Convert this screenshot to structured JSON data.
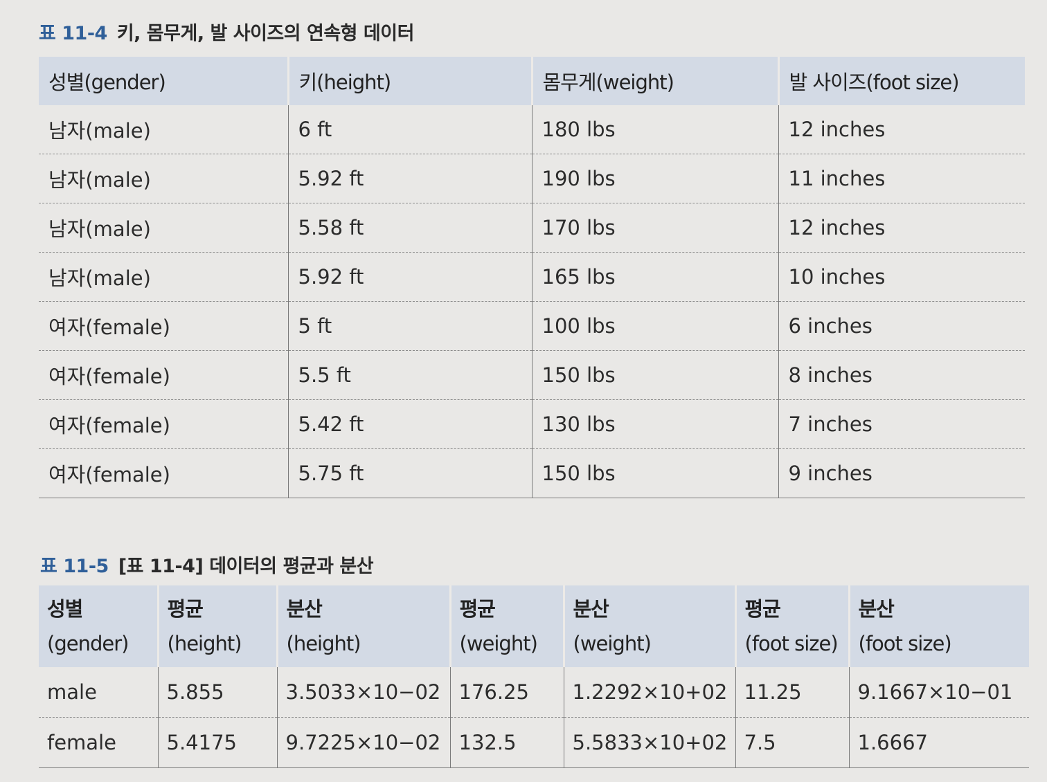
{
  "table1": {
    "caption_tag": "표 11-4",
    "caption_text": "키, 몸무게, 발 사이즈의 연속형 데이터",
    "headers": [
      "성별(gender)",
      "키(height)",
      "몸무게(weight)",
      "발 사이즈(foot size)"
    ],
    "rows": [
      [
        "남자(male)",
        "6 ft",
        "180 lbs",
        "12 inches"
      ],
      [
        "남자(male)",
        "5.92 ft",
        "190 lbs",
        "11 inches"
      ],
      [
        "남자(male)",
        "5.58 ft",
        "170 lbs",
        "12 inches"
      ],
      [
        "남자(male)",
        "5.92 ft",
        "165 lbs",
        "10 inches"
      ],
      [
        "여자(female)",
        "5 ft",
        "100 lbs",
        "6 inches"
      ],
      [
        "여자(female)",
        "5.5 ft",
        "150 lbs",
        "8 inches"
      ],
      [
        "여자(female)",
        "5.42 ft",
        "130 lbs",
        "7 inches"
      ],
      [
        "여자(female)",
        "5.75 ft",
        "150 lbs",
        "9 inches"
      ]
    ]
  },
  "table2": {
    "caption_tag": "표 11-5",
    "caption_text": "[표 11-4] 데이터의 평균과 분산",
    "headers": [
      [
        "성별",
        "(gender)"
      ],
      [
        "평균",
        "(height)"
      ],
      [
        "분산",
        "(height)"
      ],
      [
        "평균",
        "(weight)"
      ],
      [
        "분산",
        "(weight)"
      ],
      [
        "평균",
        "(foot size)"
      ],
      [
        "분산",
        "(foot size)"
      ]
    ],
    "rows": [
      [
        "male",
        "5.855",
        "3.5033×10−02",
        "176.25",
        "1.2292×10+02",
        "11.25",
        "9.1667×10−01"
      ],
      [
        "female",
        "5.4175",
        "9.7225×10−02",
        "132.5",
        "5.5833×10+02",
        "7.5",
        "1.6667"
      ]
    ]
  }
}
